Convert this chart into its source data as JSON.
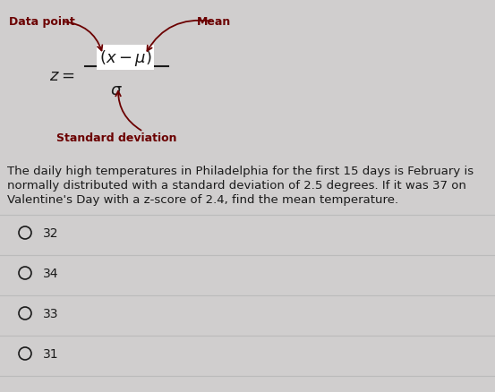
{
  "bg_color": "#d0cece",
  "label_data_point": "Data point",
  "label_mean": "Mean",
  "label_std": "Standard deviation",
  "body_line1": "The daily high temperatures in Philadelphia for the first 15 days is February is",
  "body_line2": "normally distributed with a standard deviation of 2.5 degrees. If it was 37 on",
  "body_line3": "Valentine's Day with a z-score of 2.4, find the mean temperature.",
  "choices": [
    "32",
    "34",
    "33",
    "31"
  ],
  "text_color_dark": "#1a1a1a",
  "text_color_red": "#6b0000",
  "divider_color": "#bbbbbb",
  "body_fontsize": 9.5,
  "label_fontsize": 9,
  "formula_fontsize": 13,
  "choice_fontsize": 10
}
